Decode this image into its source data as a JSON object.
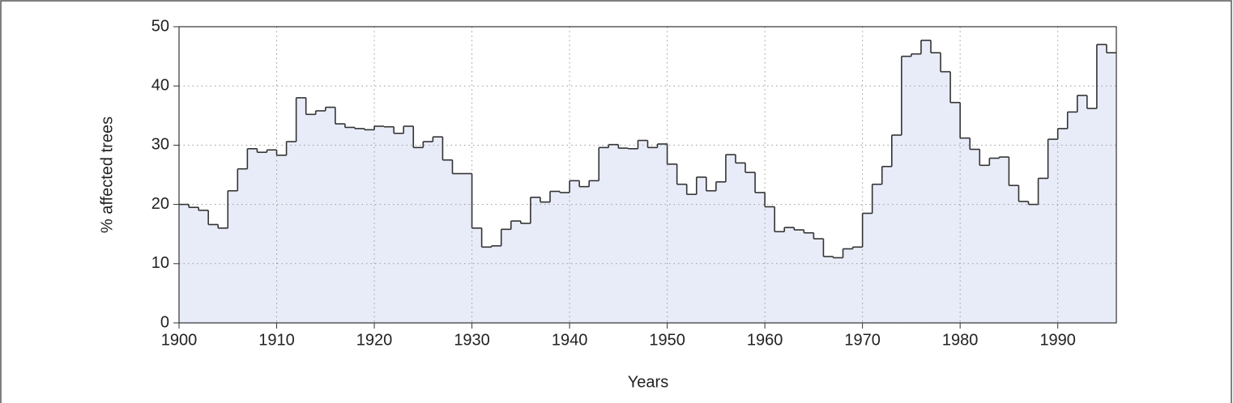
{
  "chart_data": {
    "type": "step",
    "x_label": "Years",
    "y_label": "% affected trees",
    "x": [
      1900,
      1901,
      1902,
      1903,
      1904,
      1905,
      1906,
      1907,
      1908,
      1909,
      1910,
      1911,
      1912,
      1913,
      1914,
      1915,
      1916,
      1917,
      1918,
      1919,
      1920,
      1921,
      1922,
      1923,
      1924,
      1925,
      1926,
      1927,
      1928,
      1929,
      1930,
      1931,
      1932,
      1933,
      1934,
      1935,
      1936,
      1937,
      1938,
      1939,
      1940,
      1941,
      1942,
      1943,
      1944,
      1945,
      1946,
      1947,
      1948,
      1949,
      1950,
      1951,
      1952,
      1953,
      1954,
      1955,
      1956,
      1957,
      1958,
      1959,
      1960,
      1961,
      1962,
      1963,
      1964,
      1965,
      1966,
      1967,
      1968,
      1969,
      1970,
      1971,
      1972,
      1973,
      1974,
      1975,
      1976,
      1977,
      1978,
      1979,
      1980,
      1981,
      1982,
      1983,
      1984,
      1985,
      1986,
      1987,
      1988,
      1989,
      1990,
      1991,
      1992,
      1993,
      1994,
      1995
    ],
    "values": [
      20,
      19.5,
      19,
      16.6,
      16,
      22.3,
      26,
      29.4,
      28.8,
      29.2,
      28.3,
      30.6,
      38,
      35.2,
      35.8,
      36.4,
      33.6,
      33,
      32.8,
      32.6,
      33.2,
      33.1,
      32,
      33.2,
      29.6,
      30.6,
      31.4,
      27.5,
      25.2,
      25.2,
      16,
      12.8,
      13,
      15.8,
      17.2,
      16.8,
      21.2,
      20.4,
      22.2,
      22,
      24,
      23,
      24,
      29.6,
      30.1,
      29.5,
      29.4,
      30.8,
      29.6,
      30.2,
      26.8,
      23.4,
      21.7,
      24.6,
      22.3,
      23.8,
      28.4,
      27,
      25.4,
      22,
      19.6,
      15.4,
      16.1,
      15.7,
      15.2,
      14.2,
      11.2,
      11,
      12.5,
      12.8,
      18.5,
      23.4,
      26.4,
      31.7,
      45,
      45.4,
      47.7,
      45.6,
      42.4,
      37.2,
      31.2,
      29.3,
      26.6,
      27.8,
      28,
      23.2,
      20.5,
      20,
      24.4,
      31,
      32.8,
      35.6,
      38.4,
      36.2,
      47,
      45.6
    ],
    "color": "#e8ecf8",
    "line_color": "#333333",
    "xlim": [
      1900,
      1996
    ],
    "ylim": [
      0,
      50
    ],
    "xticks": [
      1900,
      1910,
      1920,
      1930,
      1940,
      1950,
      1960,
      1970,
      1980,
      1990
    ],
    "yticks": [
      0,
      10,
      20,
      30,
      40,
      50
    ],
    "grid": true
  }
}
